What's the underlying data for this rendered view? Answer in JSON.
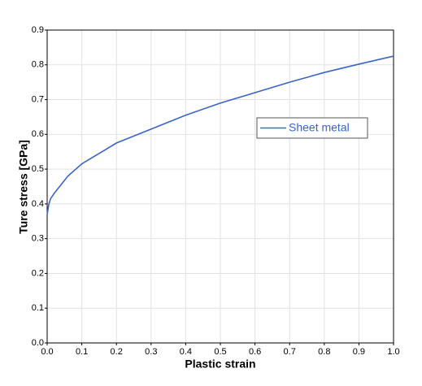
{
  "chart_data": {
    "type": "line",
    "x_label": "Plastic strain",
    "y_label": "Ture stress [GPa]",
    "x": [
      0,
      0.005,
      0.01,
      0.02,
      0.04,
      0.06,
      0.1,
      0.15,
      0.2,
      0.3,
      0.4,
      0.5,
      0.6,
      0.7,
      0.8,
      0.9,
      1.0
    ],
    "series": [
      {
        "name": "Sheet metal",
        "color": "#3a64c8",
        "values": [
          0.37,
          0.4,
          0.415,
          0.43,
          0.455,
          0.48,
          0.515,
          0.545,
          0.575,
          0.615,
          0.655,
          0.69,
          0.72,
          0.75,
          0.778,
          0.802,
          0.825
        ]
      }
    ],
    "xlim": [
      0,
      1
    ],
    "ylim": [
      0,
      0.9
    ],
    "xticks": [
      {
        "value": 0,
        "label": "0.0"
      },
      0.1,
      0.2,
      0.3,
      0.4,
      0.5,
      0.6,
      0.7,
      0.8,
      0.9,
      {
        "value": 1,
        "label": "1.0"
      }
    ],
    "yticks": [
      {
        "value": 0,
        "label": "0.0"
      },
      0.1,
      0.2,
      0.3,
      0.4,
      0.5,
      0.6,
      0.7,
      0.8,
      0.9
    ],
    "grid": true
  }
}
